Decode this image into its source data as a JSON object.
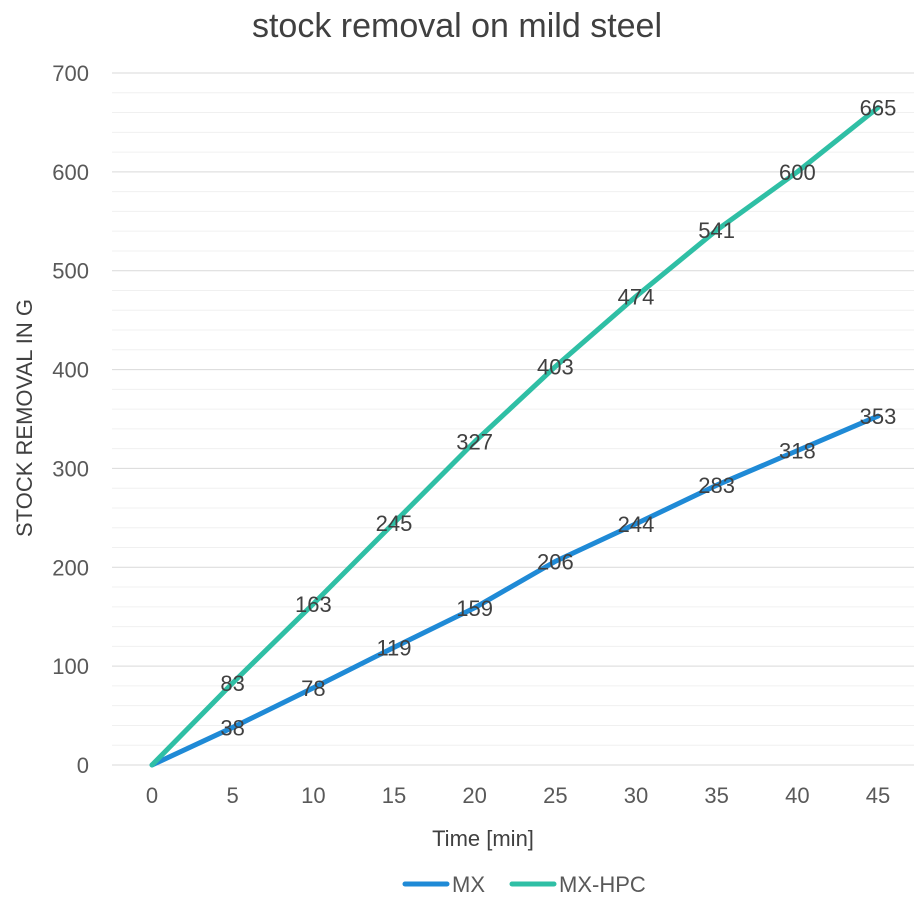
{
  "chart_data": {
    "type": "line",
    "title": "stock removal on mild steel",
    "xlabel": "Time [min]",
    "ylabel": "STOCK REMOVAL IN G",
    "x": [
      0,
      5,
      10,
      15,
      20,
      25,
      30,
      35,
      40,
      45
    ],
    "ylim": [
      0,
      700
    ],
    "yticks": [
      0,
      100,
      200,
      300,
      400,
      500,
      600,
      700
    ],
    "grid": true,
    "legend": "bottom",
    "series": [
      {
        "name": "MX",
        "color": "#1f8ad6",
        "values": [
          0,
          38,
          78,
          119,
          159,
          206,
          244,
          283,
          318,
          353
        ],
        "labels": [
          "",
          "38",
          "78",
          "119",
          "159",
          "206",
          "244",
          "283",
          "318",
          "353"
        ]
      },
      {
        "name": "MX-HPC",
        "color": "#2fbfa5",
        "values": [
          0,
          83,
          163,
          245,
          327,
          403,
          474,
          541,
          600,
          665
        ],
        "labels": [
          "",
          "83",
          "163",
          "245",
          "327",
          "403",
          "474",
          "541",
          "600",
          "665"
        ]
      }
    ]
  }
}
